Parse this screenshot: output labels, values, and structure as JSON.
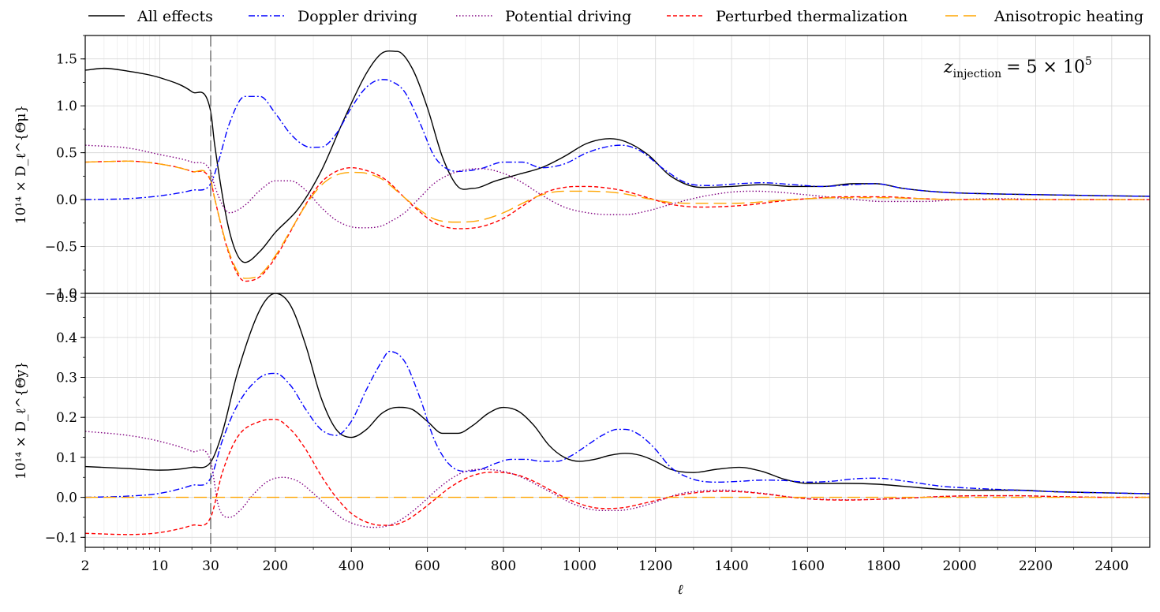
{
  "legend": [
    {
      "name": "All effects",
      "color": "#000000",
      "dash": "solid"
    },
    {
      "name": "Doppler driving",
      "color": "#0000ff",
      "dash": "dashdot"
    },
    {
      "name": "Potential driving",
      "color": "#800080",
      "dash": "dotted"
    },
    {
      "name": "Perturbed thermalization",
      "color": "#ff0000",
      "dash": "dashed"
    },
    {
      "name": "Anisotropic heating",
      "color": "#ffa500",
      "dash": "longdash"
    }
  ],
  "annotation": {
    "base": "z",
    "sub": "injection",
    "text": "= 5 × 10",
    "sup": "5"
  },
  "vline_x": 30,
  "xlabel": "ℓ",
  "chart_data": [
    {
      "type": "line",
      "panel": "top",
      "ylabel": "10¹⁴ × D_ℓ^{Θμ}",
      "ylim": [
        -1.0,
        1.75
      ],
      "yticks": [
        -1.0,
        -0.5,
        0.0,
        0.5,
        1.0,
        1.5
      ],
      "ytick_labels": [
        "−1.0",
        "−0.5",
        "0.0",
        "0.5",
        "1.0",
        "1.5"
      ],
      "xscale": "log for ℓ<30, linear for ℓ≥30",
      "xticks": [
        2,
        10,
        30,
        200,
        400,
        600,
        800,
        1000,
        1200,
        1400,
        1600,
        1800,
        2000,
        2200,
        2400
      ],
      "xlim": [
        2,
        2500
      ],
      "grid": true,
      "series": [
        {
          "name": "All effects",
          "x": [
            2,
            3,
            5,
            10,
            20,
            30,
            40,
            80,
            120,
            160,
            200,
            260,
            320,
            380,
            440,
            480,
            520,
            560,
            600,
            640,
            680,
            720,
            780,
            840,
            900,
            960,
            1020,
            1080,
            1120,
            1180,
            1240,
            1320,
            1400,
            1480,
            1560,
            1640,
            1720,
            1780,
            1850,
            1950,
            2100,
            2250,
            2400,
            2500
          ],
          "y": [
            1.38,
            1.4,
            1.37,
            1.3,
            1.15,
            0.94,
            0.6,
            -0.35,
            -0.67,
            -0.55,
            -0.35,
            -0.1,
            0.3,
            0.85,
            1.35,
            1.56,
            1.58,
            1.4,
            0.98,
            0.45,
            0.14,
            0.12,
            0.2,
            0.27,
            0.34,
            0.46,
            0.6,
            0.65,
            0.62,
            0.48,
            0.25,
            0.13,
            0.14,
            0.16,
            0.14,
            0.14,
            0.17,
            0.17,
            0.12,
            0.08,
            0.06,
            0.05,
            0.04,
            0.035
          ]
        },
        {
          "name": "Doppler driving",
          "x": [
            2,
            5,
            10,
            20,
            30,
            50,
            80,
            120,
            160,
            200,
            240,
            280,
            320,
            360,
            400,
            440,
            480,
            500,
            540,
            580,
            620,
            680,
            740,
            800,
            850,
            900,
            960,
            1020,
            1080,
            1110,
            1160,
            1220,
            1280,
            1340,
            1420,
            1480,
            1560,
            1640,
            1720,
            1780,
            1850,
            1950,
            2100,
            2250,
            2400,
            2500
          ],
          "y": [
            0.0,
            0.01,
            0.04,
            0.1,
            0.17,
            0.4,
            0.82,
            1.1,
            1.1,
            0.92,
            0.7,
            0.57,
            0.56,
            0.7,
            0.98,
            1.2,
            1.28,
            1.27,
            1.15,
            0.82,
            0.45,
            0.3,
            0.33,
            0.4,
            0.4,
            0.34,
            0.38,
            0.5,
            0.57,
            0.58,
            0.52,
            0.33,
            0.18,
            0.15,
            0.17,
            0.18,
            0.16,
            0.14,
            0.16,
            0.17,
            0.12,
            0.08,
            0.06,
            0.05,
            0.04,
            0.035
          ]
        },
        {
          "name": "Potential driving",
          "x": [
            2,
            5,
            10,
            20,
            30,
            40,
            80,
            120,
            160,
            200,
            240,
            280,
            320,
            360,
            400,
            440,
            480,
            500,
            540,
            580,
            620,
            680,
            740,
            800,
            850,
            900,
            960,
            1020,
            1080,
            1120,
            1180,
            1240,
            1320,
            1400,
            1460,
            1520,
            1600,
            1700,
            1800,
            1900,
            2000,
            2100,
            2250,
            2400,
            2500
          ],
          "y": [
            0.58,
            0.55,
            0.48,
            0.4,
            0.3,
            0.15,
            -0.14,
            -0.06,
            0.1,
            0.2,
            0.2,
            0.1,
            -0.08,
            -0.22,
            -0.29,
            -0.3,
            -0.28,
            -0.24,
            -0.14,
            0.02,
            0.18,
            0.3,
            0.33,
            0.28,
            0.18,
            0.05,
            -0.08,
            -0.14,
            -0.16,
            -0.16,
            -0.12,
            -0.05,
            0.03,
            0.08,
            0.09,
            0.08,
            0.05,
            0.01,
            -0.02,
            -0.02,
            0.0,
            0.01,
            0.0,
            0.0,
            0.0
          ]
        },
        {
          "name": "Perturbed thermalization",
          "x": [
            2,
            5,
            10,
            20,
            30,
            40,
            80,
            120,
            160,
            200,
            240,
            280,
            320,
            360,
            400,
            440,
            480,
            500,
            540,
            580,
            620,
            680,
            740,
            800,
            850,
            900,
            960,
            1020,
            1080,
            1120,
            1180,
            1240,
            1320,
            1400,
            1460,
            1520,
            1600,
            1700,
            1800,
            1900,
            2000,
            2100,
            2250,
            2400,
            2500
          ],
          "y": [
            0.4,
            0.41,
            0.38,
            0.3,
            0.2,
            0.02,
            -0.6,
            -0.87,
            -0.82,
            -0.62,
            -0.34,
            -0.05,
            0.18,
            0.3,
            0.34,
            0.31,
            0.24,
            0.18,
            0.02,
            -0.13,
            -0.25,
            -0.31,
            -0.29,
            -0.2,
            -0.07,
            0.06,
            0.13,
            0.14,
            0.12,
            0.09,
            0.02,
            -0.05,
            -0.08,
            -0.07,
            -0.05,
            -0.02,
            0.01,
            0.03,
            0.03,
            0.01,
            0.0,
            0.0,
            0.0,
            0.0,
            0.0
          ]
        },
        {
          "name": "Anisotropic heating",
          "x": [
            2,
            5,
            10,
            20,
            30,
            40,
            80,
            120,
            160,
            200,
            240,
            280,
            320,
            360,
            400,
            440,
            480,
            500,
            540,
            580,
            620,
            680,
            740,
            800,
            850,
            900,
            960,
            1020,
            1080,
            1120,
            1180,
            1240,
            1320,
            1400,
            1460,
            1520,
            1600,
            1700,
            1800,
            1900,
            2000,
            2100,
            2250,
            2400,
            2500
          ],
          "y": [
            0.4,
            0.41,
            0.38,
            0.3,
            0.21,
            0.02,
            -0.58,
            -0.84,
            -0.8,
            -0.6,
            -0.33,
            -0.06,
            0.15,
            0.26,
            0.29,
            0.28,
            0.22,
            0.16,
            0.02,
            -0.11,
            -0.21,
            -0.24,
            -0.22,
            -0.14,
            -0.04,
            0.05,
            0.09,
            0.09,
            0.08,
            0.06,
            0.01,
            -0.03,
            -0.04,
            -0.04,
            -0.03,
            -0.01,
            0.01,
            0.02,
            0.02,
            0.01,
            0.0,
            0.0,
            0.0,
            0.0,
            0.0
          ]
        }
      ]
    },
    {
      "type": "line",
      "panel": "bottom",
      "ylabel": "10¹⁴ × D_ℓ^{Θy}",
      "ylim": [
        -0.125,
        0.51
      ],
      "yticks": [
        -0.1,
        0.0,
        0.1,
        0.2,
        0.3,
        0.4,
        0.5
      ],
      "ytick_labels": [
        "−0.1",
        "0.0",
        "0.1",
        "0.2",
        "0.3",
        "0.4",
        "0.5"
      ],
      "xscale": "log for ℓ<30, linear for ℓ≥30",
      "xticks": [
        2,
        10,
        30,
        200,
        400,
        600,
        800,
        1000,
        1200,
        1400,
        1600,
        1800,
        2000,
        2200,
        2400
      ],
      "xlim": [
        2,
        2500
      ],
      "grid": true,
      "series": [
        {
          "name": "All effects",
          "x": [
            2,
            5,
            10,
            20,
            30,
            60,
            100,
            160,
            200,
            240,
            280,
            320,
            360,
            400,
            440,
            480,
            520,
            560,
            600,
            640,
            680,
            720,
            760,
            800,
            840,
            880,
            920,
            960,
            1000,
            1040,
            1080,
            1120,
            1160,
            1200,
            1240,
            1300,
            1360,
            1420,
            1480,
            1540,
            1600,
            1700,
            1780,
            1860,
            1950,
            2050,
            2150,
            2250,
            2400,
            2500
          ],
          "y": [
            0.077,
            0.072,
            0.068,
            0.075,
            0.088,
            0.16,
            0.31,
            0.47,
            0.51,
            0.48,
            0.38,
            0.25,
            0.17,
            0.15,
            0.17,
            0.21,
            0.225,
            0.22,
            0.19,
            0.16,
            0.16,
            0.18,
            0.21,
            0.225,
            0.215,
            0.18,
            0.13,
            0.1,
            0.09,
            0.095,
            0.105,
            0.11,
            0.105,
            0.09,
            0.07,
            0.062,
            0.07,
            0.075,
            0.065,
            0.045,
            0.035,
            0.035,
            0.033,
            0.027,
            0.02,
            0.018,
            0.018,
            0.014,
            0.011,
            0.009
          ]
        },
        {
          "name": "Doppler driving",
          "x": [
            2,
            5,
            10,
            20,
            30,
            60,
            100,
            160,
            200,
            240,
            280,
            320,
            360,
            400,
            440,
            480,
            500,
            540,
            580,
            620,
            660,
            700,
            740,
            780,
            820,
            860,
            900,
            940,
            980,
            1020,
            1060,
            1100,
            1120,
            1160,
            1200,
            1240,
            1300,
            1360,
            1420,
            1480,
            1540,
            1600,
            1660,
            1720,
            1780,
            1860,
            1950,
            2050,
            2150,
            2250,
            2400,
            2500
          ],
          "y": [
            0.0,
            0.003,
            0.01,
            0.03,
            0.048,
            0.14,
            0.23,
            0.3,
            0.31,
            0.28,
            0.22,
            0.17,
            0.155,
            0.19,
            0.27,
            0.34,
            0.365,
            0.34,
            0.25,
            0.14,
            0.08,
            0.065,
            0.07,
            0.085,
            0.095,
            0.095,
            0.09,
            0.09,
            0.105,
            0.13,
            0.155,
            0.17,
            0.17,
            0.155,
            0.12,
            0.075,
            0.045,
            0.038,
            0.04,
            0.043,
            0.042,
            0.038,
            0.04,
            0.046,
            0.048,
            0.04,
            0.028,
            0.022,
            0.018,
            0.014,
            0.011,
            0.009
          ]
        },
        {
          "name": "Potential driving",
          "x": [
            2,
            5,
            10,
            20,
            30,
            50,
            80,
            110,
            140,
            180,
            220,
            260,
            300,
            340,
            380,
            420,
            460,
            500,
            540,
            580,
            620,
            660,
            700,
            740,
            780,
            820,
            860,
            900,
            940,
            980,
            1020,
            1060,
            1100,
            1140,
            1180,
            1220,
            1260,
            1320,
            1380,
            1440,
            1500,
            1560,
            1620,
            1700,
            1780,
            1860,
            1950,
            2050,
            2150,
            2250,
            2400,
            2500
          ],
          "y": [
            0.165,
            0.155,
            0.14,
            0.115,
            0.09,
            -0.02,
            -0.05,
            -0.03,
            0.005,
            0.04,
            0.05,
            0.04,
            0.01,
            -0.025,
            -0.055,
            -0.07,
            -0.075,
            -0.07,
            -0.05,
            -0.02,
            0.015,
            0.045,
            0.065,
            0.07,
            0.068,
            0.06,
            0.045,
            0.025,
            0.005,
            -0.015,
            -0.028,
            -0.033,
            -0.033,
            -0.028,
            -0.018,
            -0.005,
            0.008,
            0.016,
            0.018,
            0.014,
            0.008,
            0.0,
            -0.004,
            -0.006,
            -0.005,
            -0.002,
            0.002,
            0.004,
            0.004,
            0.002,
            0.0,
            0.0
          ]
        },
        {
          "name": "Perturbed thermalization",
          "x": [
            2,
            5,
            10,
            20,
            30,
            60,
            100,
            160,
            200,
            240,
            280,
            320,
            360,
            400,
            440,
            480,
            500,
            540,
            580,
            620,
            660,
            700,
            740,
            780,
            800,
            840,
            880,
            920,
            960,
            1000,
            1040,
            1080,
            1120,
            1160,
            1200,
            1260,
            1320,
            1380,
            1440,
            1500,
            1560,
            1620,
            1700,
            1780,
            1860,
            1950,
            2050,
            2150,
            2250,
            2400,
            2500
          ],
          "y": [
            -0.09,
            -0.093,
            -0.088,
            -0.07,
            -0.05,
            0.06,
            0.15,
            0.19,
            0.195,
            0.17,
            0.12,
            0.055,
            0.0,
            -0.04,
            -0.062,
            -0.07,
            -0.07,
            -0.06,
            -0.035,
            -0.005,
            0.025,
            0.047,
            0.06,
            0.063,
            0.062,
            0.055,
            0.04,
            0.02,
            0.0,
            -0.016,
            -0.026,
            -0.028,
            -0.025,
            -0.017,
            -0.008,
            0.005,
            0.013,
            0.015,
            0.013,
            0.007,
            0.0,
            -0.005,
            -0.007,
            -0.005,
            -0.002,
            0.002,
            0.004,
            0.004,
            0.002,
            0.0,
            0.0
          ]
        },
        {
          "name": "Anisotropic heating",
          "x": [
            2,
            30,
            2500
          ],
          "y": [
            0.0,
            0.0,
            0.0
          ]
        }
      ]
    }
  ]
}
